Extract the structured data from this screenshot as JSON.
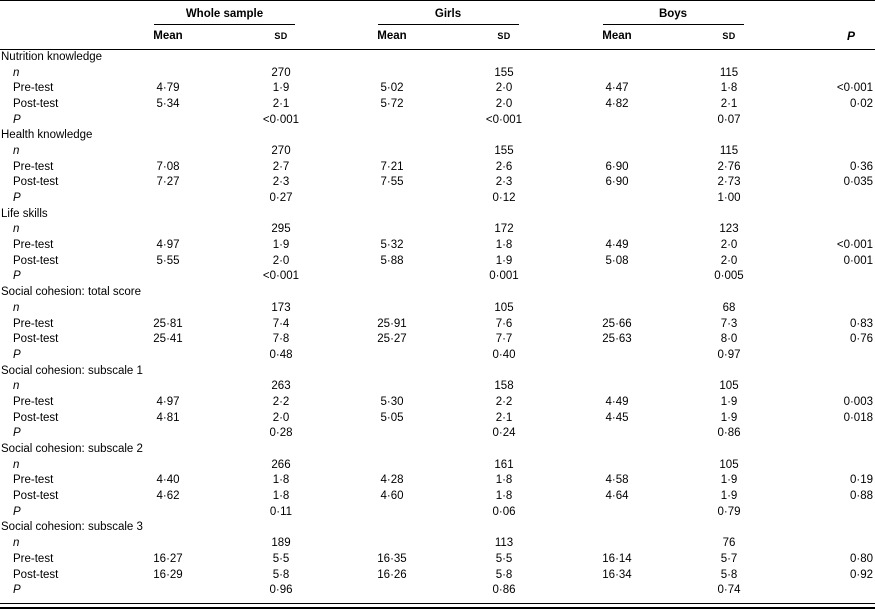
{
  "table": {
    "groups": [
      {
        "label": "Whole sample"
      },
      {
        "label": "Girls"
      },
      {
        "label": "Boys"
      }
    ],
    "headers": {
      "mean": "Mean",
      "sd": "SD",
      "p": "P"
    },
    "row_labels": {
      "n": "n",
      "p": "P"
    },
    "sections": [
      {
        "title": "Nutrition knowledge",
        "n": [
          "270",
          "155",
          "115"
        ],
        "rows": [
          {
            "label": "Pre-test",
            "means": [
              "4·79",
              "5·02",
              "4·47"
            ],
            "sds": [
              "1·9",
              "2·0",
              "1·8"
            ],
            "p": "<0·001"
          },
          {
            "label": "Post-test",
            "means": [
              "5·34",
              "5·72",
              "4·82"
            ],
            "sds": [
              "2·1",
              "2·0",
              "2·1"
            ],
            "p": "0·02"
          }
        ],
        "p_row": [
          "<0·001",
          "<0·001",
          "0·07"
        ]
      },
      {
        "title": "Health knowledge",
        "n": [
          "270",
          "155",
          "115"
        ],
        "rows": [
          {
            "label": "Pre-test",
            "means": [
              "7·08",
              "7·21",
              "6·90"
            ],
            "sds": [
              "2·7",
              "2·6",
              "2·76"
            ],
            "p": "0·36"
          },
          {
            "label": "Post-test",
            "means": [
              "7·27",
              "7·55",
              "6·90"
            ],
            "sds": [
              "2·3",
              "2·3",
              "2·73"
            ],
            "p": "0·035"
          }
        ],
        "p_row": [
          "0·27",
          "0·12",
          "1·00"
        ]
      },
      {
        "title": "Life skills",
        "n": [
          "295",
          "172",
          "123"
        ],
        "rows": [
          {
            "label": "Pre-test",
            "means": [
              "4·97",
              "5·32",
              "4·49"
            ],
            "sds": [
              "1·9",
              "1·8",
              "2·0"
            ],
            "p": "<0·001"
          },
          {
            "label": "Post-test",
            "means": [
              "5·55",
              "5·88",
              "5·08"
            ],
            "sds": [
              "2·0",
              "1·9",
              "2·0"
            ],
            "p": "0·001"
          }
        ],
        "p_row": [
          "<0·001",
          "0·001",
          "0·005"
        ]
      },
      {
        "title": "Social cohesion: total score",
        "n": [
          "173",
          "105",
          "68"
        ],
        "rows": [
          {
            "label": "Pre-test",
            "means": [
              "25·81",
              "25·91",
              "25·66"
            ],
            "sds": [
              "7·4",
              "7·6",
              "7·3"
            ],
            "p": "0·83"
          },
          {
            "label": "Post-test",
            "means": [
              "25·41",
              "25·27",
              "25·63"
            ],
            "sds": [
              "7·8",
              "7·7",
              "8·0"
            ],
            "p": "0·76"
          }
        ],
        "p_row": [
          "0·48",
          "0·40",
          "0·97"
        ]
      },
      {
        "title": "Social cohesion: subscale 1",
        "n": [
          "263",
          "158",
          "105"
        ],
        "rows": [
          {
            "label": "Pre-test",
            "means": [
              "4·97",
              "5·30",
              "4·49"
            ],
            "sds": [
              "2·2",
              "2·2",
              "1·9"
            ],
            "p": "0·003"
          },
          {
            "label": "Post-test",
            "means": [
              "4·81",
              "5·05",
              "4·45"
            ],
            "sds": [
              "2·0",
              "2·1",
              "1·9"
            ],
            "p": "0·018"
          }
        ],
        "p_row": [
          "0·28",
          "0·24",
          "0·86"
        ]
      },
      {
        "title": "Social cohesion: subscale 2",
        "n": [
          "266",
          "161",
          "105"
        ],
        "rows": [
          {
            "label": "Pre-test",
            "means": [
              "4·40",
              "4·28",
              "4·58"
            ],
            "sds": [
              "1·8",
              "1·8",
              "1·9"
            ],
            "p": "0·19"
          },
          {
            "label": "Post-test",
            "means": [
              "4·62",
              "4·60",
              "4·64"
            ],
            "sds": [
              "1·8",
              "1·8",
              "1·9"
            ],
            "p": "0·88"
          }
        ],
        "p_row": [
          "0·11",
          "0·06",
          "0·79"
        ]
      },
      {
        "title": "Social cohesion: subscale 3",
        "n": [
          "189",
          "113",
          "76"
        ],
        "rows": [
          {
            "label": "Pre-test",
            "means": [
              "16·27",
              "16·35",
              "16·14"
            ],
            "sds": [
              "5·5",
              "5·5",
              "5·7"
            ],
            "p": "0·80"
          },
          {
            "label": "Post-test",
            "means": [
              "16·29",
              "16·26",
              "16·34"
            ],
            "sds": [
              "5·8",
              "5·8",
              "5·8"
            ],
            "p": "0·92"
          }
        ],
        "p_row": [
          "0·96",
          "0·86",
          "0·74"
        ]
      }
    ]
  }
}
